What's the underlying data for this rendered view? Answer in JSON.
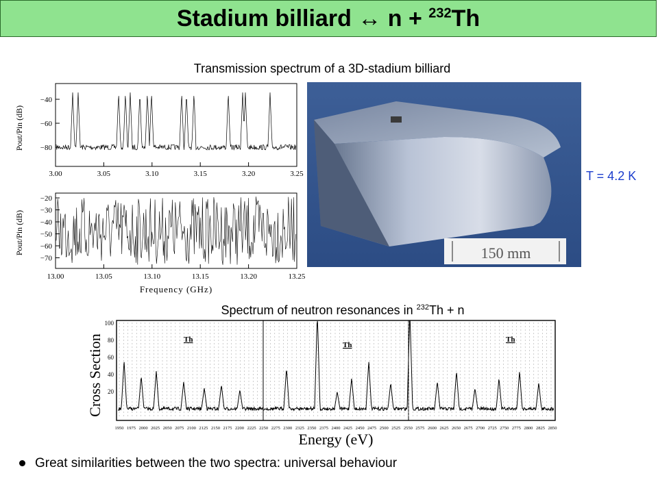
{
  "title": {
    "main": "Stadium billiard ",
    "arrow": "↔",
    "rest": " n + ",
    "sup": "232",
    "end": "Th"
  },
  "caption_top": "Transmission spectrum of a 3D-stadium billiard",
  "caption_bottom": {
    "pre": "Spectrum of neutron resonances in ",
    "sup": "232",
    "post": "Th + n"
  },
  "temperature": "T = 4.2 K",
  "photo": {
    "scale_label": "150 mm"
  },
  "plot1": {
    "ylabel": "Pout/Pin (dB)",
    "yticks": [
      "−40",
      "−60",
      "−80"
    ],
    "xticks": [
      "3.00",
      "3.05",
      "3.10",
      "3.15",
      "3.20",
      "3.25"
    ]
  },
  "plot2": {
    "ylabel": "Pout/Pin (dB)",
    "yticks": [
      "−20",
      "−30",
      "−40",
      "−50",
      "−60",
      "−70"
    ],
    "xticks": [
      "13.00",
      "13.05",
      "13.10",
      "13.15",
      "13.20",
      "13.25"
    ],
    "xlabel": "Frequency (GHz)"
  },
  "plot3": {
    "ylabel": "Cross Section",
    "xlabel": "Energy (eV)",
    "yticks": [
      "100",
      "80",
      "60",
      "40",
      "20"
    ],
    "panel_labels": [
      "Th",
      "Th",
      "Th"
    ],
    "xticks": [
      "1950",
      "1975",
      "2000",
      "2025",
      "2050",
      "2075",
      "2100",
      "2125",
      "2150",
      "2175",
      "2200",
      "2225",
      "2250",
      "2275",
      "2300",
      "2325",
      "2350",
      "2375",
      "2400",
      "2425",
      "2450",
      "2475",
      "2500",
      "2525",
      "2550",
      "2575",
      "2600",
      "2625",
      "2650",
      "2675",
      "2700",
      "2725",
      "2750",
      "2775",
      "2800",
      "2825",
      "2850"
    ]
  },
  "bullet": "Great similarities between the two spectra: universal behaviour",
  "colors": {
    "title_bg": "#8fe38f",
    "temperature": "#1a3ccc"
  }
}
